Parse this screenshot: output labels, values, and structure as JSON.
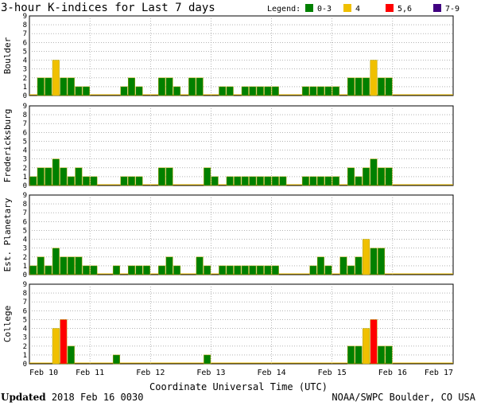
{
  "chart_data": {
    "type": "bar",
    "title": "3-hour K-indices for Last 7 days",
    "legend_label": "Legend:",
    "legend": [
      {
        "label": "0-3",
        "color": "#008000"
      },
      {
        "label": "4",
        "color": "#f0c000"
      },
      {
        "label": "5,6",
        "color": "#ff0000"
      },
      {
        "label": "7-9",
        "color": "#400080"
      }
    ],
    "x_ticks": [
      "Feb 10",
      "Feb 11",
      "Feb 12",
      "Feb 13",
      "Feb 14",
      "Feb 15",
      "Feb 16",
      "Feb 17"
    ],
    "xlabel": "Coordinate Universal Time (UTC)",
    "ylim": [
      0,
      9
    ],
    "y_ticks": [
      "0",
      "1",
      "2",
      "3",
      "4",
      "5",
      "6",
      "7",
      "8",
      "9"
    ],
    "series": [
      {
        "name": "Boulder",
        "values": [
          0,
          2,
          2,
          4,
          2,
          2,
          1,
          1,
          0,
          0,
          0,
          0,
          1,
          2,
          1,
          0,
          0,
          2,
          2,
          1,
          0,
          2,
          2,
          0,
          0,
          1,
          1,
          0,
          1,
          1,
          1,
          1,
          1,
          0,
          0,
          0,
          1,
          1,
          1,
          1,
          1,
          0,
          2,
          2,
          2,
          4,
          2,
          2,
          0,
          0,
          0,
          0,
          0,
          0,
          0,
          0
        ]
      },
      {
        "name": "Fredericksburg",
        "values": [
          1,
          2,
          2,
          3,
          2,
          1,
          2,
          1,
          1,
          0,
          0,
          0,
          1,
          1,
          1,
          0,
          0,
          2,
          2,
          0,
          0,
          0,
          0,
          2,
          1,
          0,
          1,
          1,
          1,
          1,
          1,
          1,
          1,
          1,
          0,
          0,
          1,
          1,
          1,
          1,
          1,
          0,
          2,
          1,
          2,
          3,
          2,
          2,
          0,
          0,
          0,
          0,
          0,
          0,
          0,
          0
        ]
      },
      {
        "name": "Est. Planetary",
        "values": [
          1,
          2,
          1,
          3,
          2,
          2,
          2,
          1,
          1,
          0,
          0,
          1,
          0,
          1,
          1,
          1,
          0,
          1,
          2,
          1,
          0,
          0,
          2,
          1,
          0,
          1,
          1,
          1,
          1,
          1,
          1,
          1,
          1,
          0,
          0,
          0,
          0,
          1,
          2,
          1,
          0,
          2,
          1,
          2,
          4,
          3,
          3,
          0,
          0,
          0,
          0,
          0,
          0,
          0,
          0,
          0
        ]
      },
      {
        "name": "College",
        "values": [
          0,
          0,
          0,
          4,
          5,
          2,
          0,
          0,
          0,
          0,
          0,
          1,
          0,
          0,
          0,
          0,
          0,
          0,
          0,
          0,
          0,
          0,
          0,
          1,
          0,
          0,
          0,
          0,
          0,
          0,
          0,
          0,
          0,
          0,
          0,
          0,
          0,
          0,
          0,
          0,
          0,
          0,
          2,
          2,
          4,
          5,
          2,
          2,
          0,
          0,
          0,
          0,
          0,
          0,
          0,
          0
        ]
      }
    ]
  },
  "footer": {
    "updated_word": "Updated",
    "updated_date": "2018 Feb 16 0030",
    "source": "NOAA/SWPC Boulder, CO USA"
  }
}
